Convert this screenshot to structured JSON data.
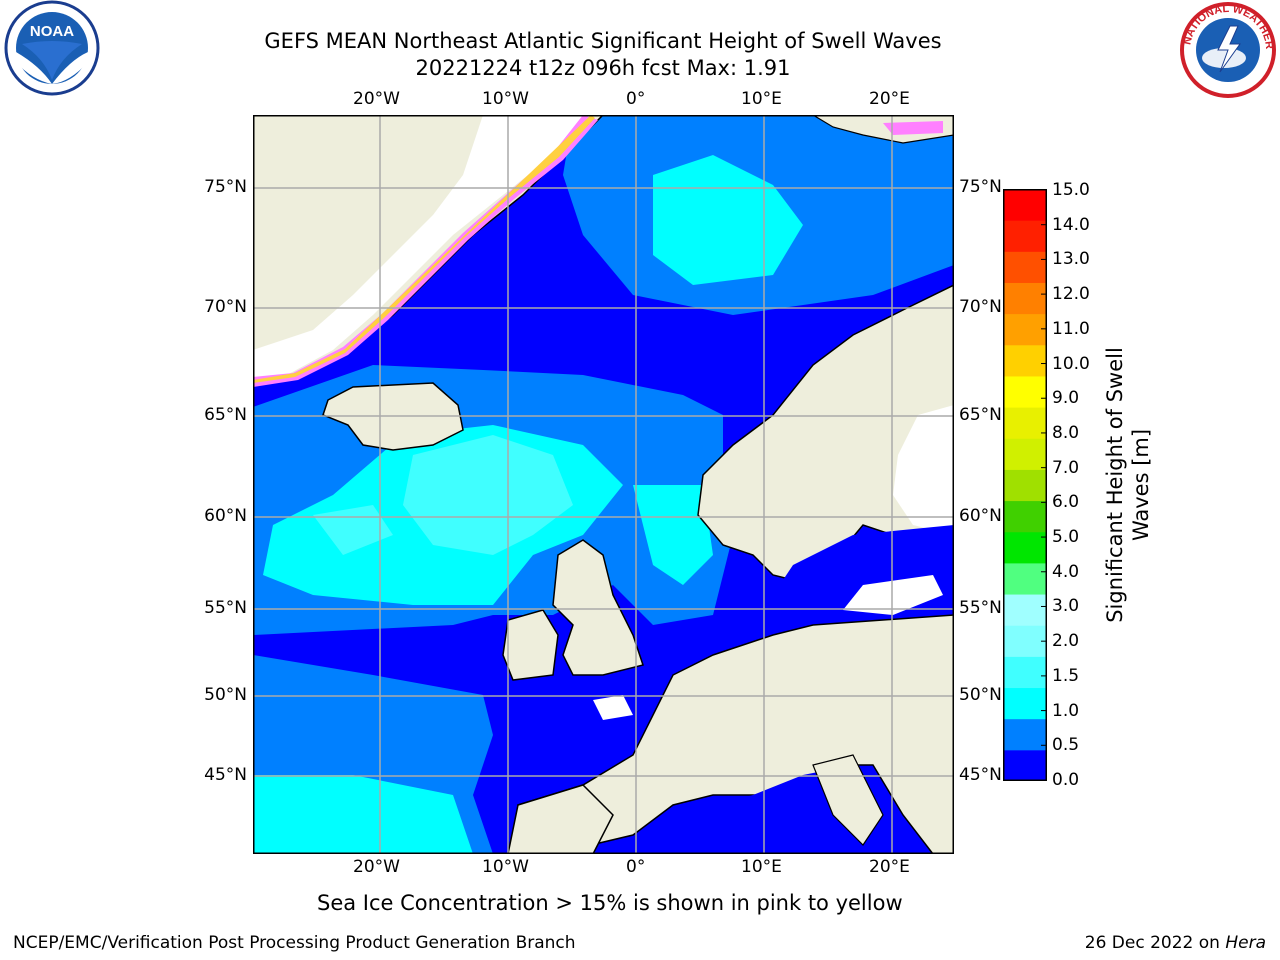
{
  "title": {
    "line1": "GEFS MEAN Northeast Atlantic Significant Height of Swell Waves",
    "line2": "20221224 t12z 096h fcst    Max: 1.91"
  },
  "map": {
    "lon_labels": [
      "20°W",
      "10°W",
      "0°",
      "10°E",
      "20°E"
    ],
    "lat_labels": [
      "75°N",
      "70°N",
      "65°N",
      "60°N",
      "55°N",
      "50°N",
      "45°N"
    ],
    "colors": {
      "land": "#eeeedc",
      "ice_free_white": "#ffffff",
      "grid": "#aaaaaa"
    },
    "logos": [
      "noaa-logo",
      "nws-logo"
    ]
  },
  "colorbar": {
    "label_line1": "Significant Height of Swell",
    "label_line2": "Waves [m]",
    "ticks": [
      "15.0",
      "14.0",
      "13.0",
      "12.0",
      "11.0",
      "10.0",
      "9.0",
      "8.0",
      "7.0",
      "6.0",
      "5.0",
      "4.0",
      "3.0",
      "2.0",
      "1.5",
      "1.0",
      "0.5",
      "0.0"
    ],
    "colors_bottom_to_top": [
      "#0000ff",
      "#0080ff",
      "#00ffff",
      "#40ffff",
      "#80ffff",
      "#a0ffff",
      "#50ff80",
      "#00e600",
      "#40d000",
      "#a0e000",
      "#d0f000",
      "#e8f000",
      "#ffff00",
      "#ffd000",
      "#ffa000",
      "#ff8000",
      "#ff5000",
      "#ff2000",
      "#ff0000"
    ]
  },
  "notes": {
    "sea_ice": "Sea Ice Concentration > 15% is shown in pink to yellow"
  },
  "footer": {
    "left": "NCEP/EMC/Verification Post Processing Product Generation Branch",
    "right_prefix": "26 Dec 2022 on ",
    "right_host": "Hera"
  }
}
